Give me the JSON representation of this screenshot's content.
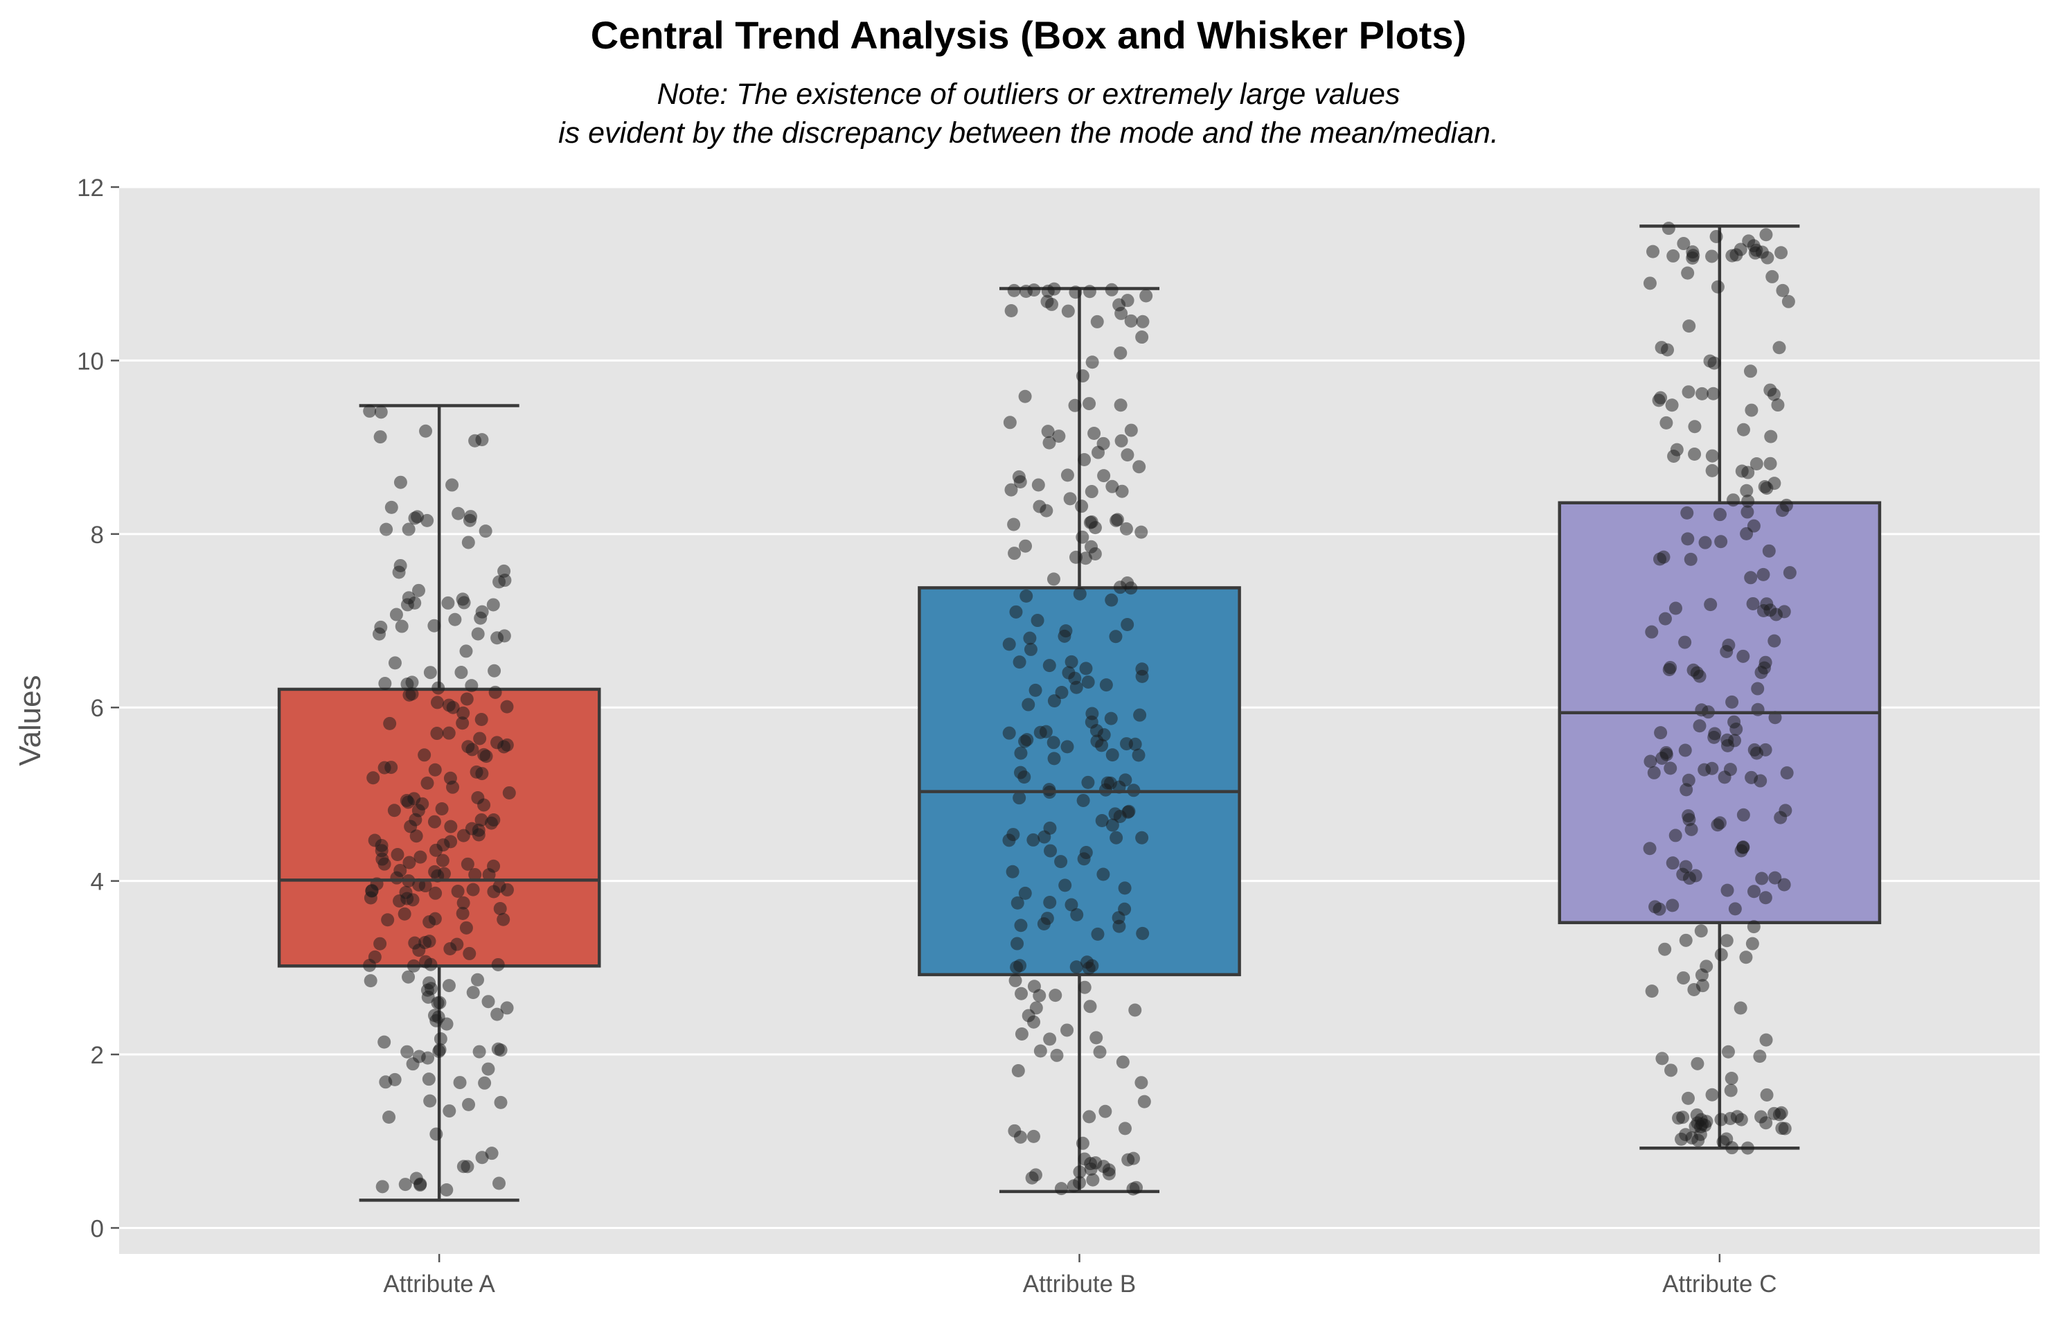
{
  "chart_data": {
    "type": "box",
    "title": "Central Trend Analysis (Box and Whisker Plots)",
    "subtitle_lines": [
      "Note: The existence of outliers or extremely large values",
      "is evident by the discrepancy between the mode and the mean/median."
    ],
    "xlabel": "",
    "ylabel": "Values",
    "ylim": [
      -0.3,
      12.0
    ],
    "yticks": [
      0,
      2,
      4,
      6,
      8,
      10,
      12
    ],
    "grid": true,
    "categories": [
      "Attribute A",
      "Attribute B",
      "Attribute C"
    ],
    "boxes": [
      {
        "name": "Attribute A",
        "color": "#d1584a",
        "min": 0.32,
        "q1": 3.02,
        "median": 4.01,
        "q3": 6.21,
        "max": 9.48,
        "n_points": 220
      },
      {
        "name": "Attribute B",
        "color": "#3f87b3",
        "min": 0.42,
        "q1": 2.92,
        "median": 5.03,
        "q3": 7.38,
        "max": 10.83,
        "n_points": 220
      },
      {
        "name": "Attribute C",
        "color": "#9c97cb",
        "min": 0.92,
        "q1": 3.52,
        "median": 5.94,
        "q3": 8.36,
        "max": 11.55,
        "n_points": 220
      }
    ]
  }
}
